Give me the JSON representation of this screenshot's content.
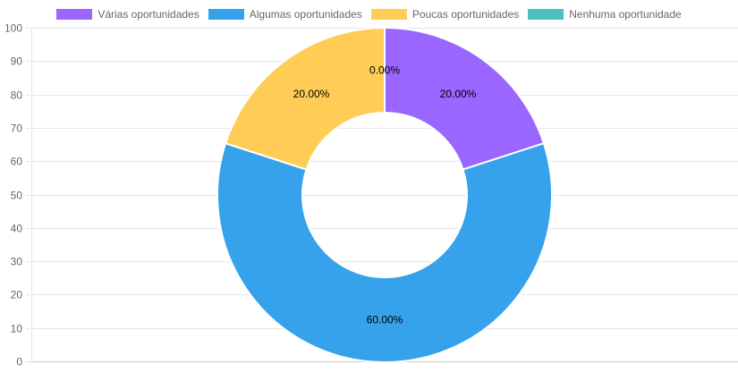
{
  "chart_data": {
    "type": "pie",
    "variant": "doughnut",
    "title": "",
    "legend_position": "top",
    "grid": true,
    "ylim": [
      0,
      100
    ],
    "y_ticks": [
      "0",
      "10",
      "20",
      "30",
      "40",
      "50",
      "60",
      "70",
      "80",
      "90",
      "100"
    ],
    "categories": [
      "Várias oportunidades",
      "Algumas oportunidades",
      "Poucas oportunidades",
      "Nenhuma oportunidade"
    ],
    "values": [
      20,
      60,
      20,
      0
    ],
    "data_labels": [
      "20.00%",
      "60.00%",
      "20.00%",
      "0.00%"
    ],
    "colors": [
      "#9966ff",
      "#36a2eb",
      "#ffcd56",
      "#4bc0c0"
    ]
  }
}
